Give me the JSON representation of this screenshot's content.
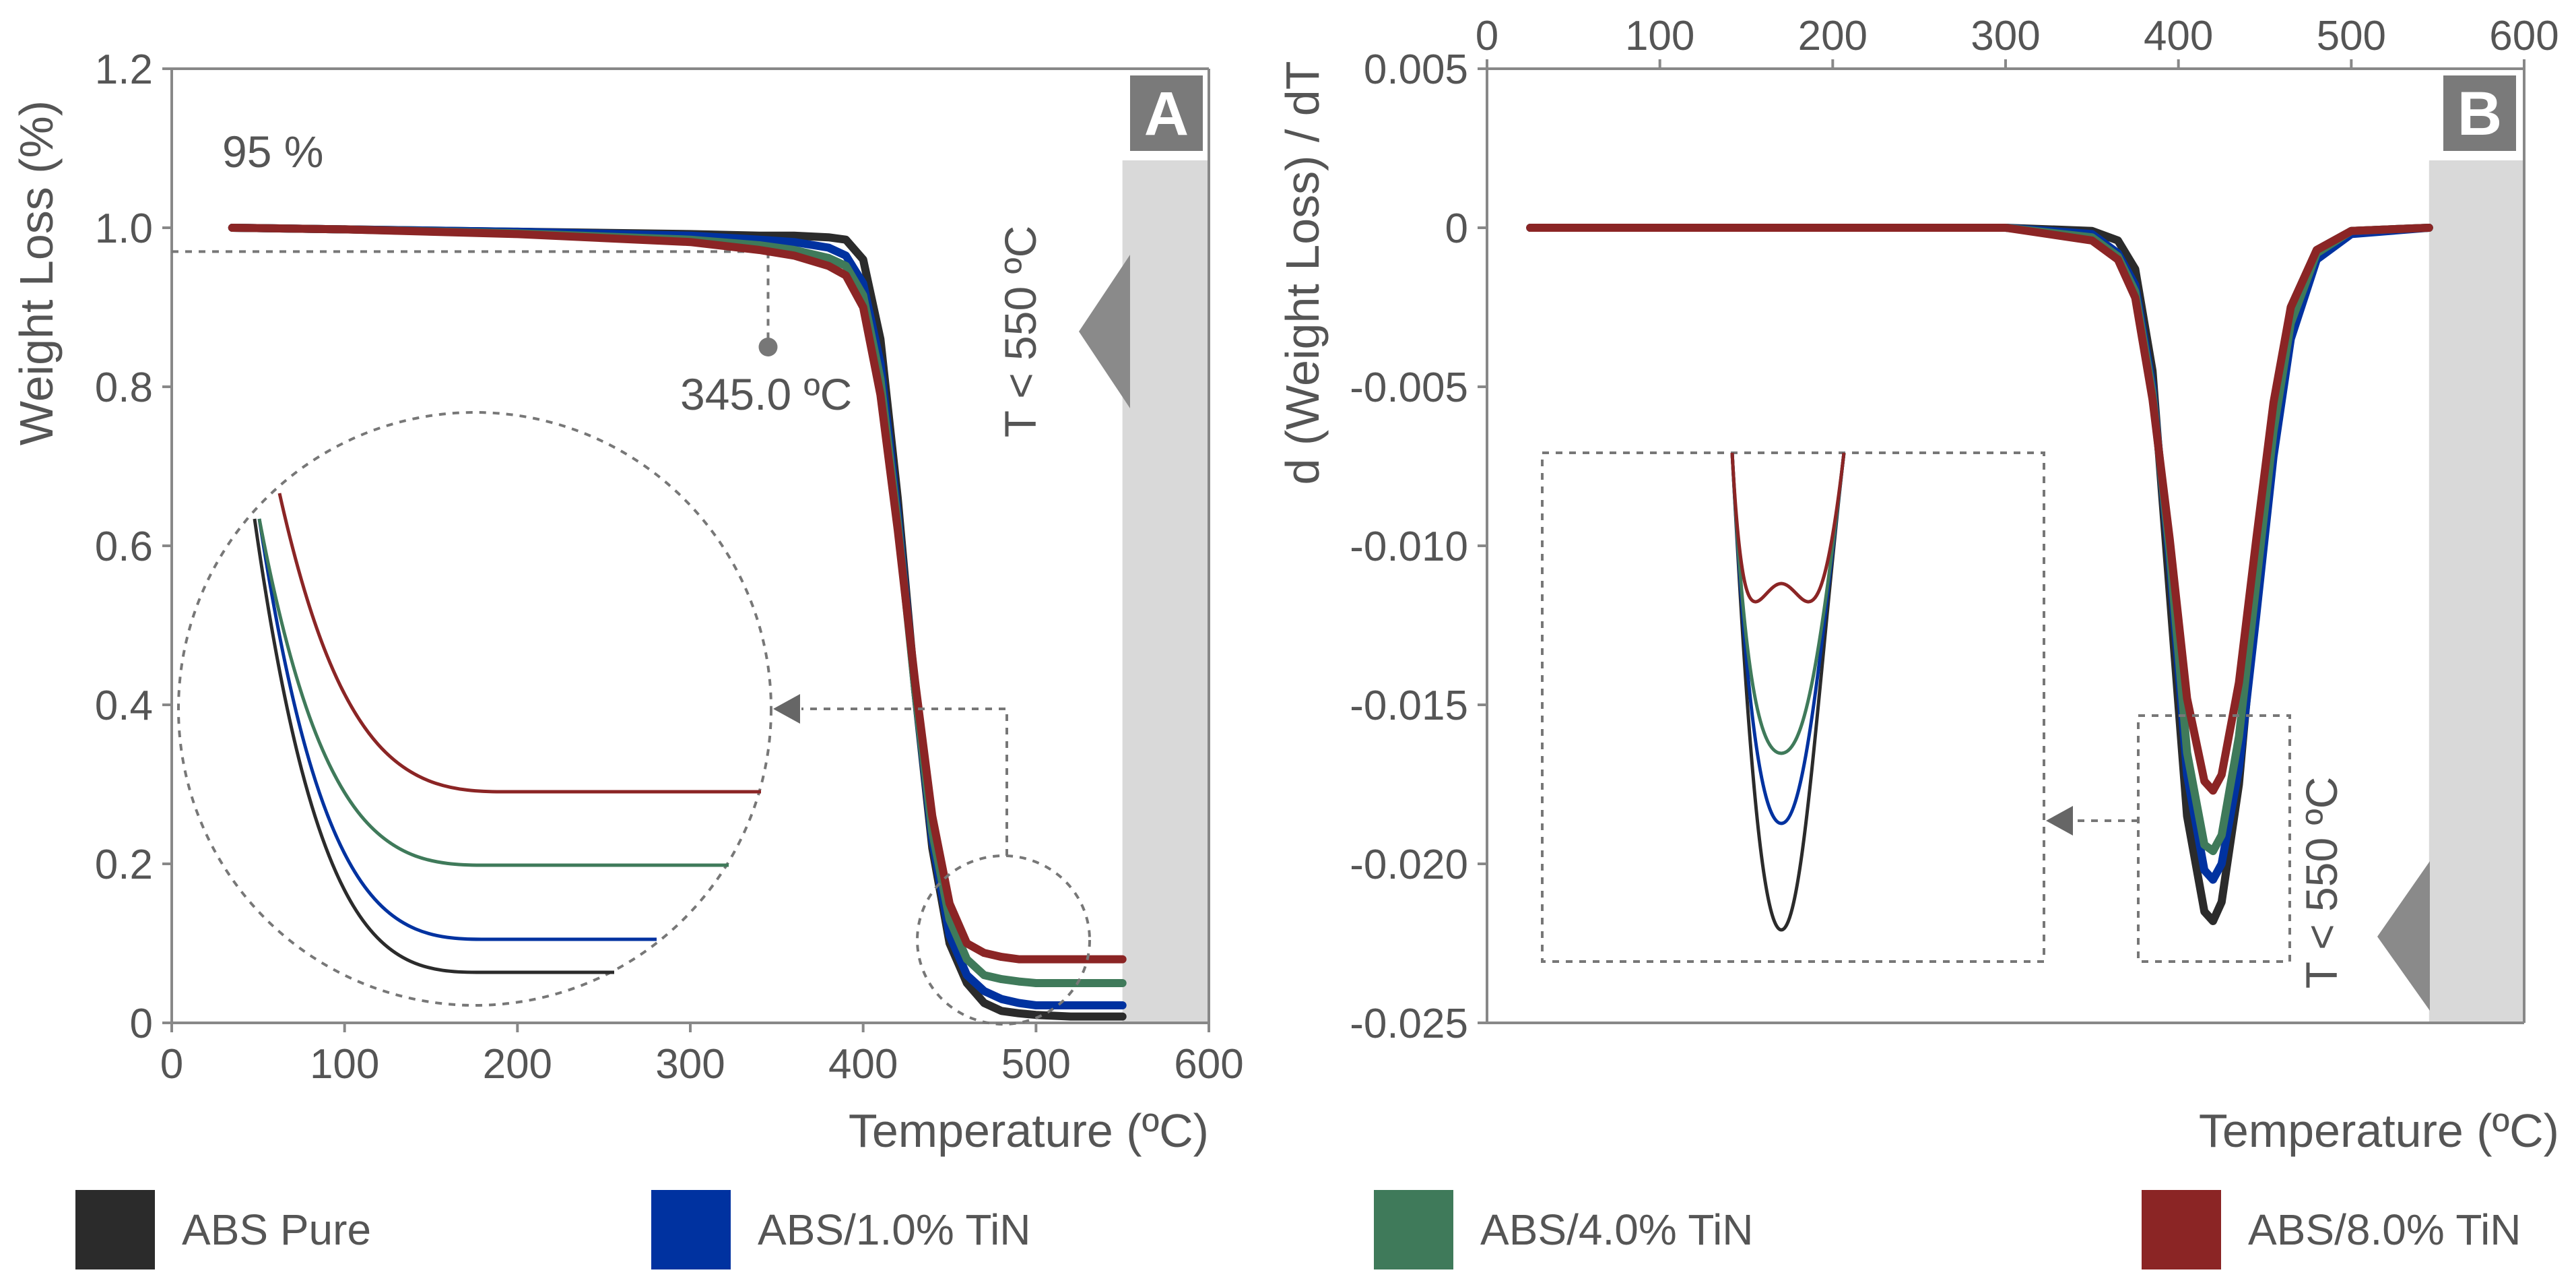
{
  "legend": {
    "items": [
      {
        "label": "ABS Pure",
        "color": "#2b2b2b"
      },
      {
        "label": "ABS/1.0% TiN",
        "color": "#0032a0"
      },
      {
        "label": "ABS/4.0% TiN",
        "color": "#3f7a5a"
      },
      {
        "label": "ABS/8.0% TiN",
        "color": "#8b2525"
      }
    ]
  },
  "chart_data": [
    {
      "type": "line",
      "panel": "A",
      "title": "",
      "xlabel": "Temperature (ºC)",
      "ylabel": "Weight Loss (%)",
      "xlim": [
        0,
        600
      ],
      "ylim": [
        0,
        1.2
      ],
      "xticks": [
        "0",
        "100",
        "200",
        "300",
        "400",
        "500",
        "600"
      ],
      "yticks": [
        "0",
        "0.2",
        "0.4",
        "0.6",
        "0.8",
        "1.0",
        "1.2"
      ],
      "shaded_region": {
        "label": "T < 550 ºC",
        "from_x": 550,
        "to_x": 600
      },
      "annotations": {
        "percent": "95 %",
        "temperature": "345.0 ºC",
        "threshold_y": 0.97,
        "marker_x": 345,
        "marker_y": 0.85
      },
      "x": [
        35,
        100,
        200,
        300,
        340,
        360,
        380,
        390,
        400,
        410,
        420,
        430,
        440,
        450,
        460,
        470,
        480,
        490,
        500,
        520,
        550
      ],
      "series": [
        {
          "name": "ABS Pure",
          "values": [
            1.0,
            0.998,
            0.995,
            0.992,
            0.99,
            0.99,
            0.988,
            0.985,
            0.96,
            0.86,
            0.66,
            0.42,
            0.22,
            0.1,
            0.05,
            0.025,
            0.015,
            0.012,
            0.01,
            0.008,
            0.008
          ]
        },
        {
          "name": "ABS/1.0% TiN",
          "values": [
            1.0,
            0.998,
            0.995,
            0.99,
            0.985,
            0.982,
            0.975,
            0.965,
            0.93,
            0.83,
            0.64,
            0.42,
            0.23,
            0.11,
            0.06,
            0.04,
            0.03,
            0.025,
            0.022,
            0.022,
            0.022
          ]
        },
        {
          "name": "ABS/4.0% TiN",
          "values": [
            1.0,
            0.998,
            0.993,
            0.985,
            0.978,
            0.972,
            0.962,
            0.952,
            0.915,
            0.81,
            0.63,
            0.42,
            0.24,
            0.13,
            0.08,
            0.06,
            0.055,
            0.052,
            0.05,
            0.05,
            0.05
          ]
        },
        {
          "name": "ABS/8.0% TiN",
          "values": [
            1.0,
            0.998,
            0.992,
            0.982,
            0.972,
            0.965,
            0.952,
            0.94,
            0.9,
            0.79,
            0.62,
            0.43,
            0.26,
            0.15,
            0.1,
            0.088,
            0.083,
            0.08,
            0.08,
            0.08,
            0.08
          ]
        }
      ]
    },
    {
      "type": "line",
      "panel": "B",
      "title": "",
      "xlabel": "Temperature (ºC)",
      "ylabel": "d (Weight Loss) / dT",
      "xlim": [
        0,
        600
      ],
      "ylim": [
        -0.025,
        0.005
      ],
      "xticks": [
        "0",
        "100",
        "200",
        "300",
        "400",
        "500",
        "600"
      ],
      "yticks": [
        "0.005",
        "0",
        "-0.005",
        "-0.010",
        "-0.015",
        "-0.020",
        "-0.025"
      ],
      "shaded_region": {
        "label": "T < 550 ºC",
        "from_x": 545,
        "to_x": 600
      },
      "x": [
        25,
        100,
        200,
        300,
        350,
        365,
        375,
        385,
        395,
        405,
        415,
        420,
        425,
        435,
        445,
        455,
        465,
        480,
        500,
        545
      ],
      "series": [
        {
          "name": "ABS Pure",
          "values": [
            0,
            0,
            0,
            0,
            -0.0001,
            -0.0004,
            -0.0013,
            -0.0045,
            -0.0115,
            -0.0185,
            -0.0215,
            -0.0218,
            -0.0212,
            -0.0175,
            -0.0115,
            -0.006,
            -0.0025,
            -0.0007,
            -0.0001,
            0
          ]
        },
        {
          "name": "ABS/1.0% TiN",
          "values": [
            0,
            0,
            0,
            0,
            -0.0002,
            -0.0008,
            -0.0018,
            -0.005,
            -0.0105,
            -0.0172,
            -0.0202,
            -0.0205,
            -0.02,
            -0.017,
            -0.0122,
            -0.0072,
            -0.0035,
            -0.001,
            -0.0002,
            0
          ]
        },
        {
          "name": "ABS/4.0% TiN",
          "values": [
            0,
            0,
            0,
            0,
            -0.0003,
            -0.0009,
            -0.002,
            -0.0052,
            -0.0102,
            -0.0165,
            -0.0194,
            -0.0196,
            -0.0191,
            -0.016,
            -0.0112,
            -0.0064,
            -0.003,
            -0.0008,
            -0.0001,
            0
          ]
        },
        {
          "name": "ABS/8.0% TiN",
          "values": [
            0,
            0,
            0,
            0,
            -0.0004,
            -0.001,
            -0.0022,
            -0.0054,
            -0.0098,
            -0.0148,
            -0.0174,
            -0.0177,
            -0.0172,
            -0.0143,
            -0.0098,
            -0.0055,
            -0.0025,
            -0.0007,
            -0.0001,
            0
          ]
        }
      ]
    }
  ]
}
